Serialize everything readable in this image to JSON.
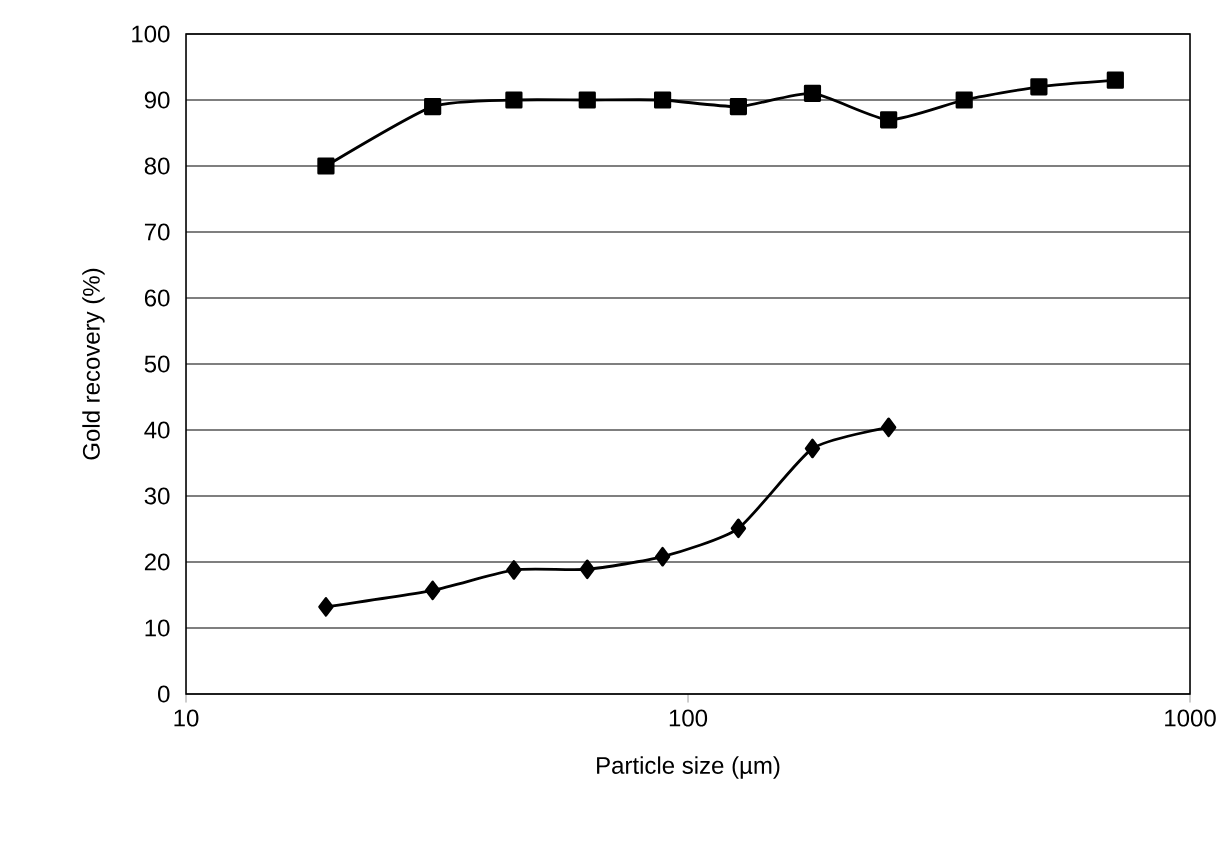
{
  "chart_data": {
    "type": "line",
    "xlabel": "Particle size (µm)",
    "ylabel": "Gold recovery (%)",
    "log": "x",
    "xlim": [
      10,
      1000
    ],
    "xticks": [
      10,
      100,
      1000
    ],
    "ylim": [
      0,
      100
    ],
    "yticks": [
      0,
      10,
      20,
      30,
      40,
      50,
      60,
      70,
      80,
      90,
      100
    ],
    "grid": "y",
    "line_style": "solid",
    "series": [
      {
        "color": "#000000",
        "marker": "diamond",
        "x": [
          19,
          31,
          45,
          63,
          89,
          126,
          177,
          251
        ],
        "values": [
          13.2,
          15.7,
          18.8,
          18.9,
          20.8,
          25.1,
          37.2,
          40.4
        ]
      },
      {
        "color": "#000000",
        "marker": "square",
        "x": [
          19,
          31,
          45,
          63,
          89,
          126,
          177,
          251,
          355,
          500,
          710
        ],
        "values": [
          80,
          89,
          90,
          90,
          90,
          89,
          91,
          87,
          90,
          92,
          93
        ]
      }
    ]
  }
}
